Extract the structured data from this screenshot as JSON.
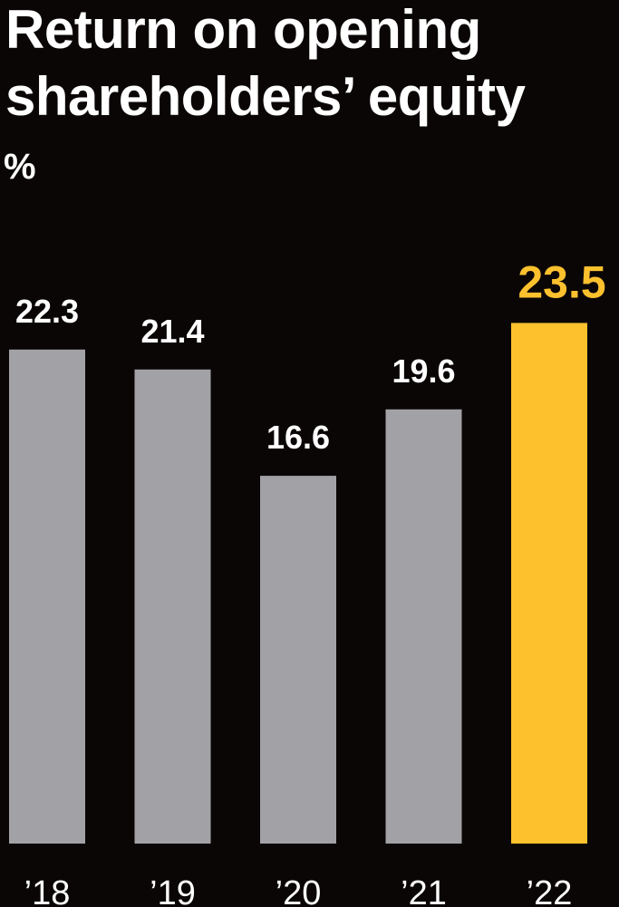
{
  "chart_data": {
    "type": "bar",
    "title": "Return on opening shareholders’ equity",
    "unit_label": "%",
    "categories": [
      "’18",
      "’19",
      "’20",
      "’21",
      "’22"
    ],
    "values": [
      22.3,
      21.4,
      16.6,
      19.6,
      23.5
    ],
    "value_labels": [
      "22.3",
      "21.4",
      "16.6",
      "19.6",
      "23.5"
    ],
    "highlight_index": 4,
    "colors": {
      "background": "#0b0606",
      "bar": "#a2a2a6",
      "highlight": "#fdc12e",
      "text": "#ffffff"
    },
    "grid": false,
    "legend": "none"
  }
}
